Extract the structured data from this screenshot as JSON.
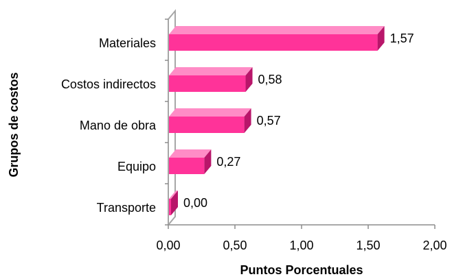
{
  "chart_data": {
    "type": "bar",
    "orientation": "horizontal",
    "style": "3d",
    "title": "",
    "xlabel": "Puntos Porcentuales",
    "ylabel": "Grupos de costos",
    "categories": [
      "Materiales",
      "Costos indirectos",
      "Mano de obra",
      "Equipo",
      "Transporte"
    ],
    "values": [
      1.57,
      0.58,
      0.57,
      0.27,
      0.0
    ],
    "value_labels": [
      "1,57",
      "0,58",
      "0,57",
      "0,27",
      "0,00"
    ],
    "xlim": [
      0,
      2
    ],
    "xticks": [
      0,
      0.5,
      1.0,
      1.5,
      2.0
    ],
    "xtick_labels": [
      "0,00",
      "0,50",
      "1,00",
      "1,50",
      "2,00"
    ],
    "grid": false,
    "legend": "none",
    "colors": {
      "bar_front": "#ff3399",
      "bar_top": "#ff8cc6",
      "bar_side": "#b8166a",
      "wall": "#a6a6a6",
      "axis": "#8c8c8c"
    }
  }
}
